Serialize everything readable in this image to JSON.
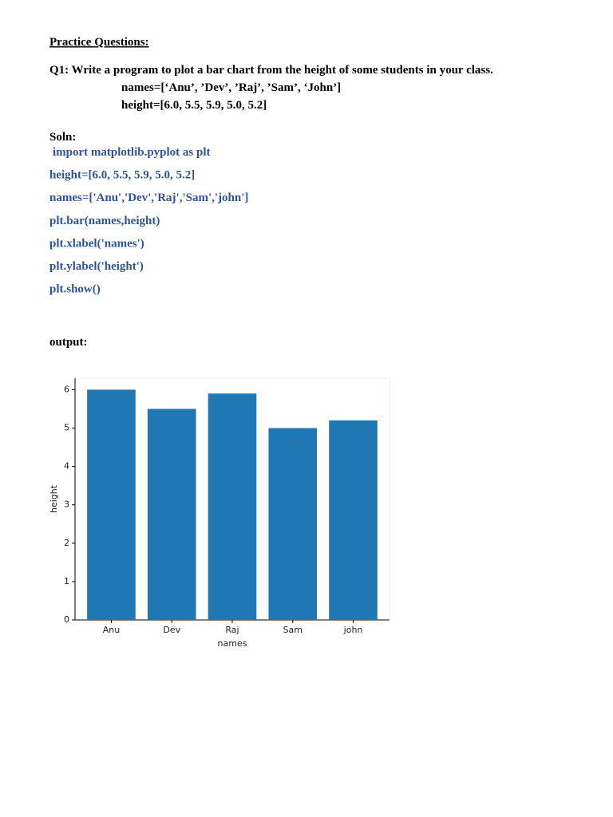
{
  "heading": "Practice Questions:",
  "question": "Q1: Write a program to plot a bar chart from the height of some students in your class.",
  "question_lines": [
    "names=[‘Anu’, ’Dev’, ’Raj’, ’Sam’, ‘John’]",
    "height=[6.0,  5.5,  5.9,  5.0, 5.2]"
  ],
  "soln_label": "Soln:",
  "code": [
    "import matplotlib.pyplot as plt",
    "height=[6.0,  5.5,  5.9,  5.0, 5.2]",
    "names=['Anu','Dev','Raj','Sam','john']",
    "plt.bar(names,height)",
    "plt.xlabel('names')",
    "plt.ylabel('height')",
    "plt.show()"
  ],
  "output_label": "output:",
  "chart_data": {
    "type": "bar",
    "categories": [
      "Anu",
      "Dev",
      "Raj",
      "Sam",
      "john"
    ],
    "values": [
      6.0,
      5.5,
      5.9,
      5.0,
      5.2
    ],
    "color": "#1f77b4",
    "x_label": "names",
    "y_label": "height",
    "ylim": [
      0,
      6.3
    ],
    "yticks": [
      0,
      1,
      2,
      3,
      4,
      5,
      6
    ]
  }
}
